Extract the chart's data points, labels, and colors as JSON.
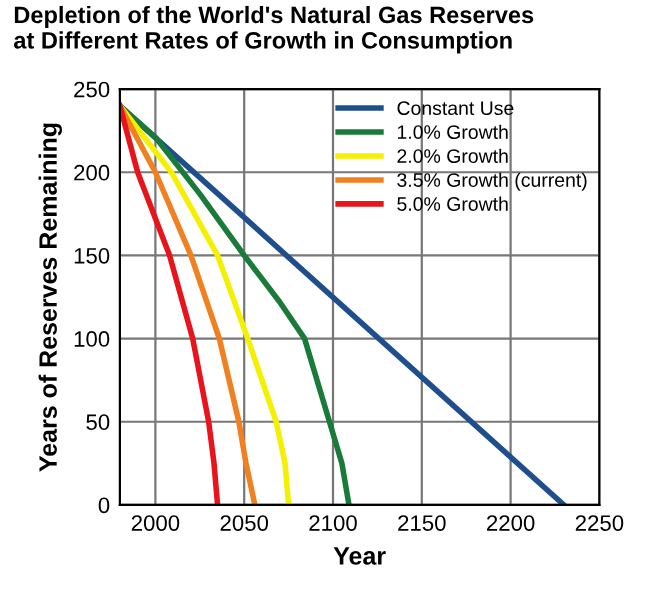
{
  "chart_data": {
    "type": "line",
    "title": "Depletion of the World's Natural Gas Reserves\nat Different Rates of Growth in Consumption",
    "xlabel": "Year",
    "ylabel": "Years of Reserves Remaining",
    "xlim": [
      1980,
      2250
    ],
    "xticks": [
      2000,
      2050,
      2100,
      2150,
      2200,
      2250
    ],
    "ylim": [
      0,
      250
    ],
    "yticks": [
      0,
      50,
      100,
      150,
      200,
      250
    ],
    "grid": true,
    "legend": "top right",
    "marker": "none",
    "line_style": "solid",
    "series": [
      {
        "name": "Constant Use",
        "color": "#1f4e8c",
        "x": [
          1980,
          2230
        ],
        "values": [
          240,
          0
        ]
      },
      {
        "name": "1.0% Growth",
        "color": "#1a7a3a",
        "x": [
          1980,
          2000,
          2025,
          2050,
          2070,
          2084,
          2098,
          2105,
          2109
        ],
        "values": [
          240,
          221,
          187,
          150,
          122,
          100,
          50,
          25,
          0
        ]
      },
      {
        "name": "2.0% Growth",
        "color": "#f5f000",
        "x": [
          1980,
          2009,
          2035,
          2052,
          2068,
          2073,
          2075
        ],
        "values": [
          240,
          200,
          150,
          100,
          50,
          25,
          0
        ]
      },
      {
        "name": "3.5% Growth (current)",
        "color": "#f08020",
        "x": [
          1980,
          2000,
          2020,
          2036,
          2047,
          2051,
          2056
        ],
        "values": [
          240,
          200,
          150,
          100,
          50,
          25,
          0
        ]
      },
      {
        "name": "5.0% Growth",
        "color": "#e8141c",
        "x": [
          1980,
          1990,
          2008,
          2021,
          2030,
          2033,
          2035
        ],
        "values": [
          240,
          200,
          150,
          100,
          50,
          25,
          0
        ]
      }
    ]
  }
}
